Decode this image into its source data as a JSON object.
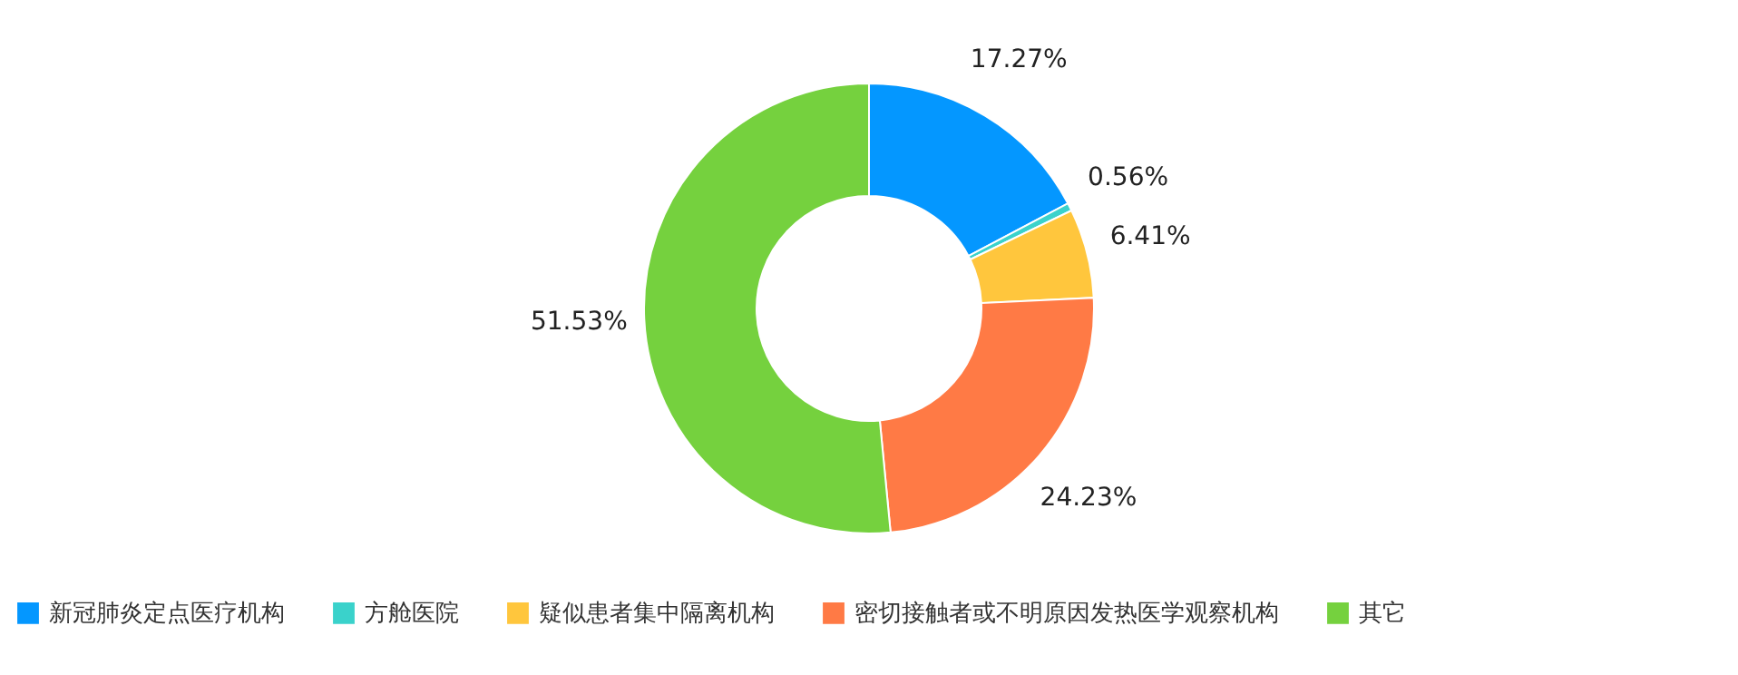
{
  "chart_data": {
    "type": "donut",
    "categories": [
      "新冠肺炎定点医疗机构",
      "方舱医院",
      "疑似患者集中隔离机构",
      "密切接触者或不明原因发热医学观察机构",
      "其它"
    ],
    "values": [
      17.27,
      0.56,
      6.41,
      24.23,
      51.53
    ],
    "colors": [
      "#0497ff",
      "#3ad2cb",
      "#ffc63d",
      "#ff7a45",
      "#75d13e"
    ],
    "value_labels": [
      "17.27%",
      "0.56%",
      "6.41%",
      "24.23%",
      "51.53%"
    ],
    "legend": "bottom"
  }
}
